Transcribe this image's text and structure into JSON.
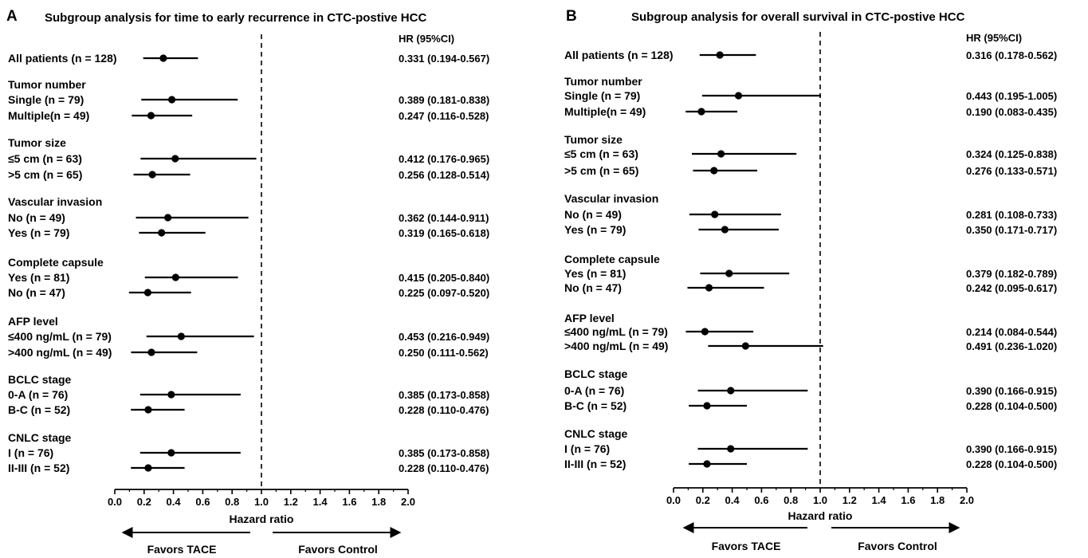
{
  "chart_data": [
    {
      "type": "forest",
      "panel_letter": "A",
      "title": "Subgroup analysis for time to early recurrence in CTC-postive HCC",
      "hr_header": "HR (95%CI)",
      "xlabel": "Hazard ratio",
      "xlim": [
        0,
        2
      ],
      "xticks": [
        "0.0",
        "0.2",
        "0.4",
        "0.6",
        "0.8",
        "1.0",
        "1.2",
        "1.4",
        "1.6",
        "1.8",
        "2.0"
      ],
      "reference_line": 1.0,
      "favors_left": "Favors TACE",
      "favors_right": "Favors Control",
      "rows": [
        {
          "kind": "row",
          "label": "All patients (n = 128)",
          "hr": 0.331,
          "lo": 0.194,
          "hi": 0.567,
          "ci_text": "0.331 (0.194-0.567)"
        },
        {
          "kind": "header",
          "label": "Tumor number"
        },
        {
          "kind": "row",
          "label": "Single   (n = 79)",
          "hr": 0.389,
          "lo": 0.181,
          "hi": 0.838,
          "ci_text": "0.389 (0.181-0.838)"
        },
        {
          "kind": "row",
          "label": "Multiple(n = 49)",
          "hr": 0.247,
          "lo": 0.116,
          "hi": 0.528,
          "ci_text": "0.247 (0.116-0.528)"
        },
        {
          "kind": "header",
          "label": "Tumor size"
        },
        {
          "kind": "row",
          "label": "≤5 cm (n = 63)",
          "hr": 0.412,
          "lo": 0.176,
          "hi": 0.965,
          "ci_text": "0.412 (0.176-0.965)"
        },
        {
          "kind": "row",
          "label": ">5 cm (n = 65)",
          "hr": 0.256,
          "lo": 0.128,
          "hi": 0.514,
          "ci_text": "0.256 (0.128-0.514)"
        },
        {
          "kind": "header",
          "label": "Vascular invasion"
        },
        {
          "kind": "row",
          "label": "No  (n = 49)",
          "hr": 0.362,
          "lo": 0.144,
          "hi": 0.911,
          "ci_text": "0.362 (0.144-0.911)"
        },
        {
          "kind": "row",
          "label": "Yes (n = 79)",
          "hr": 0.319,
          "lo": 0.165,
          "hi": 0.618,
          "ci_text": "0.319 (0.165-0.618)"
        },
        {
          "kind": "header",
          "label": "Complete capsule"
        },
        {
          "kind": "row",
          "label": "Yes  (n = 81)",
          "hr": 0.415,
          "lo": 0.205,
          "hi": 0.84,
          "ci_text": "0.415 (0.205-0.840)"
        },
        {
          "kind": "row",
          "label": "No   (n = 47)",
          "hr": 0.225,
          "lo": 0.097,
          "hi": 0.52,
          "ci_text": "0.225 (0.097-0.520)"
        },
        {
          "kind": "header",
          "label": "AFP level"
        },
        {
          "kind": "row",
          "label": "≤400 ng/mL (n = 79)",
          "hr": 0.453,
          "lo": 0.216,
          "hi": 0.949,
          "ci_text": "0.453 (0.216-0.949)"
        },
        {
          "kind": "row",
          "label": ">400 ng/mL (n = 49)",
          "hr": 0.25,
          "lo": 0.111,
          "hi": 0.562,
          "ci_text": "0.250 (0.111-0.562)"
        },
        {
          "kind": "header",
          "label": "BCLC stage"
        },
        {
          "kind": "row",
          "label": "0-A  (n = 76)",
          "hr": 0.385,
          "lo": 0.173,
          "hi": 0.858,
          "ci_text": "0.385 (0.173-0.858)"
        },
        {
          "kind": "row",
          "label": "B-C  (n = 52)",
          "hr": 0.228,
          "lo": 0.11,
          "hi": 0.476,
          "ci_text": "0.228 (0.110-0.476)"
        },
        {
          "kind": "header",
          "label": "CNLC stage"
        },
        {
          "kind": "row",
          "label": "I      (n = 76)",
          "hr": 0.385,
          "lo": 0.173,
          "hi": 0.858,
          "ci_text": "0.385 (0.173-0.858)"
        },
        {
          "kind": "row",
          "label": "II-III (n = 52)",
          "hr": 0.228,
          "lo": 0.11,
          "hi": 0.476,
          "ci_text": "0.228 (0.110-0.476)"
        }
      ]
    },
    {
      "type": "forest",
      "panel_letter": "B",
      "title": "Subgroup analysis for overall survival in CTC-postive HCC",
      "hr_header": "HR (95%CI)",
      "xlabel": "Hazard ratio",
      "xlim": [
        0,
        2
      ],
      "xticks": [
        "0.0",
        "0.2",
        "0.4",
        "0.6",
        "0.8",
        "1.0",
        "1.2",
        "1.4",
        "1.6",
        "1.8",
        "2.0"
      ],
      "reference_line": 1.0,
      "favors_left": "Favors TACE",
      "favors_right": "Favors Control",
      "rows": [
        {
          "kind": "row",
          "label": "All patients (n = 128)",
          "hr": 0.316,
          "lo": 0.178,
          "hi": 0.562,
          "ci_text": "0.316 (0.178-0.562)"
        },
        {
          "kind": "header",
          "label": "Tumor number"
        },
        {
          "kind": "row",
          "label": "Single   (n = 79)",
          "hr": 0.443,
          "lo": 0.195,
          "hi": 1.005,
          "ci_text": "0.443 (0.195-1.005)"
        },
        {
          "kind": "row",
          "label": "Multiple(n = 49)",
          "hr": 0.19,
          "lo": 0.083,
          "hi": 0.435,
          "ci_text": "0.190 (0.083-0.435)"
        },
        {
          "kind": "header",
          "label": "Tumor size"
        },
        {
          "kind": "row",
          "label": "≤5 cm (n = 63)",
          "hr": 0.324,
          "lo": 0.125,
          "hi": 0.838,
          "ci_text": "0.324 (0.125-0.838)"
        },
        {
          "kind": "row",
          "label": ">5 cm (n = 65)",
          "hr": 0.276,
          "lo": 0.133,
          "hi": 0.571,
          "ci_text": "0.276 (0.133-0.571)"
        },
        {
          "kind": "header",
          "label": "Vascular invasion"
        },
        {
          "kind": "row",
          "label": "No  (n = 49)",
          "hr": 0.281,
          "lo": 0.108,
          "hi": 0.733,
          "ci_text": "0.281 (0.108-0.733)"
        },
        {
          "kind": "row",
          "label": "Yes (n = 79)",
          "hr": 0.35,
          "lo": 0.171,
          "hi": 0.717,
          "ci_text": "0.350 (0.171-0.717)"
        },
        {
          "kind": "header",
          "label": "Complete capsule"
        },
        {
          "kind": "row",
          "label": "Yes  (n = 81)",
          "hr": 0.379,
          "lo": 0.182,
          "hi": 0.789,
          "ci_text": "0.379 (0.182-0.789)"
        },
        {
          "kind": "row",
          "label": "No   (n = 47)",
          "hr": 0.242,
          "lo": 0.095,
          "hi": 0.617,
          "ci_text": "0.242 (0.095-0.617)"
        },
        {
          "kind": "header",
          "label": "AFP level"
        },
        {
          "kind": "row",
          "label": "≤400 ng/mL (n = 79)",
          "hr": 0.214,
          "lo": 0.084,
          "hi": 0.544,
          "ci_text": "0.214 (0.084-0.544)"
        },
        {
          "kind": "row",
          "label": ">400 ng/mL (n = 49)",
          "hr": 0.491,
          "lo": 0.236,
          "hi": 1.02,
          "ci_text": "0.491 (0.236-1.020)"
        },
        {
          "kind": "header",
          "label": "BCLC stage"
        },
        {
          "kind": "row",
          "label": "0-A  (n = 76)",
          "hr": 0.39,
          "lo": 0.166,
          "hi": 0.915,
          "ci_text": "0.390 (0.166-0.915)"
        },
        {
          "kind": "row",
          "label": "B-C  (n = 52)",
          "hr": 0.228,
          "lo": 0.104,
          "hi": 0.5,
          "ci_text": "0.228 (0.104-0.500)"
        },
        {
          "kind": "header",
          "label": "CNLC stage"
        },
        {
          "kind": "row",
          "label": "I      (n = 76)",
          "hr": 0.39,
          "lo": 0.166,
          "hi": 0.915,
          "ci_text": "0.390 (0.166-0.915)"
        },
        {
          "kind": "row",
          "label": "II-III (n = 52)",
          "hr": 0.228,
          "lo": 0.104,
          "hi": 0.5,
          "ci_text": "0.228 (0.104-0.500)"
        }
      ]
    }
  ]
}
